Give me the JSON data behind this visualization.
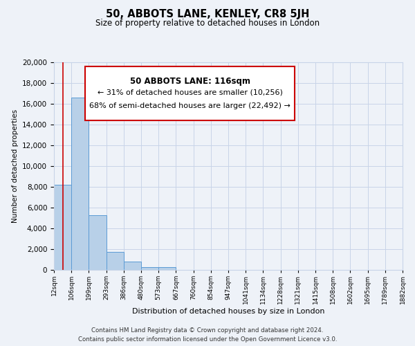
{
  "title": "50, ABBOTS LANE, KENLEY, CR8 5JH",
  "subtitle": "Size of property relative to detached houses in London",
  "xlabel": "Distribution of detached houses by size in London",
  "ylabel": "Number of detached properties",
  "bar_color": "#b8d0e8",
  "bar_edge_color": "#5b9bd5",
  "background_color": "#eef2f8",
  "grid_color": "#c8d4e8",
  "vline_color": "#cc0000",
  "vline_x": 0.5,
  "annotation_box_edge": "#cc0000",
  "annotation_title": "50 ABBOTS LANE: 116sqm",
  "annotation_line1": "← 31% of detached houses are smaller (10,256)",
  "annotation_line2": "68% of semi-detached houses are larger (22,492) →",
  "footnote1": "Contains HM Land Registry data © Crown copyright and database right 2024.",
  "footnote2": "Contains public sector information licensed under the Open Government Licence v3.0.",
  "bin_labels": [
    "12sqm",
    "106sqm",
    "199sqm",
    "293sqm",
    "386sqm",
    "480sqm",
    "573sqm",
    "667sqm",
    "760sqm",
    "854sqm",
    "947sqm",
    "1041sqm",
    "1134sqm",
    "1228sqm",
    "1321sqm",
    "1415sqm",
    "1508sqm",
    "1602sqm",
    "1695sqm",
    "1789sqm",
    "1882sqm"
  ],
  "bar_heights": [
    8200,
    16600,
    5300,
    1750,
    800,
    300,
    300,
    0,
    0,
    0,
    0,
    0,
    0,
    0,
    0,
    0,
    0,
    0,
    0,
    0
  ],
  "ylim": [
    0,
    20000
  ],
  "yticks": [
    0,
    2000,
    4000,
    6000,
    8000,
    10000,
    12000,
    14000,
    16000,
    18000,
    20000
  ]
}
